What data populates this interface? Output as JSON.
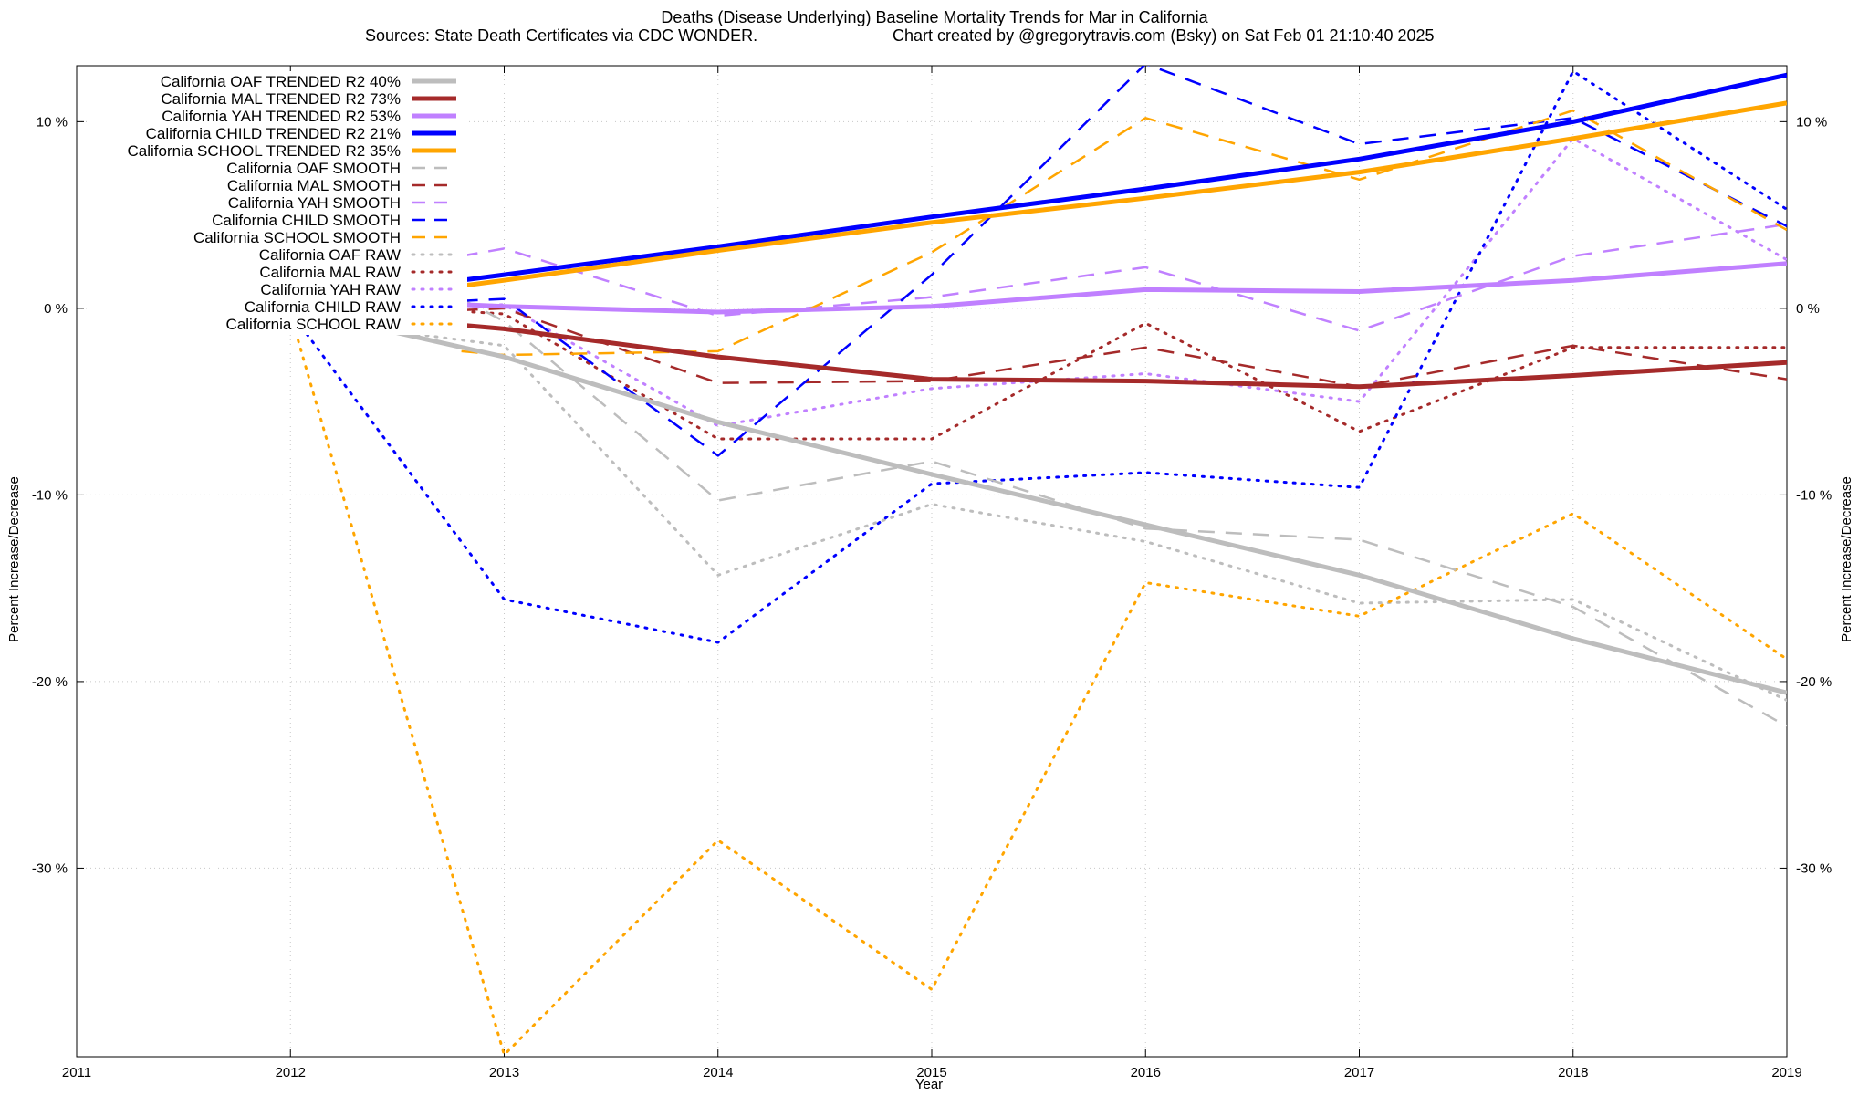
{
  "chart_data": {
    "type": "line",
    "title": "Deaths (Disease Underlying)  Baseline Mortality Trends for Mar in California",
    "subtitle_left": "Sources: State Death Certificates via CDC WONDER.",
    "subtitle_right": "Chart created by @gregorytravis.com (Bsky) on Sat Feb 01 21:10:40 2025",
    "xlabel": "Year",
    "ylabel_left": "Percent Increase/Decrease",
    "ylabel_right": "Percent Increase/Decrease",
    "xlim": [
      2011,
      2019
    ],
    "ylim": [
      -40.1,
      13
    ],
    "x_ticks": [
      2011,
      2012,
      2013,
      2014,
      2015,
      2016,
      2017,
      2018,
      2019
    ],
    "x_tick_labels": [
      "2011",
      "2012",
      "2013",
      "2014",
      "2015",
      "2016",
      "2017",
      "2018",
      "2019"
    ],
    "y_ticks": [
      10,
      0,
      -10,
      -20,
      -30
    ],
    "y_tick_labels": [
      "10 %",
      "0 %",
      "-10 %",
      "-20 %",
      "-30 %"
    ],
    "grid": true,
    "legend_position": "top-left",
    "series": [
      {
        "name": "California OAF TRENDED R2  40%",
        "style": "solid",
        "color": "#bdbdbd",
        "points": [
          [
            2012.3,
            -0.8
          ],
          [
            2013,
            -2.6
          ],
          [
            2014,
            -6.1
          ],
          [
            2015,
            -8.9
          ],
          [
            2016,
            -11.6
          ],
          [
            2017,
            -14.3
          ],
          [
            2018,
            -17.7
          ],
          [
            2019,
            -20.6
          ]
        ]
      },
      {
        "name": "California MAL TRENDED R2  73%",
        "style": "solid",
        "color": "#a52a2a",
        "points": [
          [
            2012.8,
            -0.9
          ],
          [
            2013,
            -1.1
          ],
          [
            2014,
            -2.6
          ],
          [
            2015,
            -3.8
          ],
          [
            2016,
            -3.9
          ],
          [
            2017,
            -4.2
          ],
          [
            2018,
            -3.6
          ],
          [
            2019,
            -2.9
          ]
        ]
      },
      {
        "name": "California YAH TRENDED R2  53%",
        "style": "solid",
        "color": "#c080ff",
        "points": [
          [
            2012.8,
            0.2
          ],
          [
            2013,
            0.1
          ],
          [
            2014,
            -0.2
          ],
          [
            2015,
            0.1
          ],
          [
            2016,
            1.0
          ],
          [
            2017,
            0.9
          ],
          [
            2018,
            1.5
          ],
          [
            2019,
            2.4
          ]
        ]
      },
      {
        "name": "California CHILD TRENDED R2  21%",
        "style": "solid",
        "color": "#0000ff",
        "points": [
          [
            2012.8,
            1.5
          ],
          [
            2013,
            1.8
          ],
          [
            2014,
            3.3
          ],
          [
            2015,
            4.9
          ],
          [
            2016,
            6.4
          ],
          [
            2017,
            8.0
          ],
          [
            2018,
            10.0
          ],
          [
            2019,
            12.5
          ]
        ]
      },
      {
        "name": "California SCHOOL TRENDED R2  35%",
        "style": "solid",
        "color": "#ffa500",
        "points": [
          [
            2012.8,
            1.2
          ],
          [
            2013,
            1.5
          ],
          [
            2014,
            3.1
          ],
          [
            2015,
            4.6
          ],
          [
            2016,
            5.9
          ],
          [
            2017,
            7.3
          ],
          [
            2018,
            9.1
          ],
          [
            2019,
            11.0
          ]
        ]
      },
      {
        "name": "California OAF SMOOTH",
        "style": "dashed",
        "color": "#bdbdbd",
        "points": [
          [
            2012.8,
            0.5
          ],
          [
            2013,
            -0.7
          ],
          [
            2014,
            -10.3
          ],
          [
            2015,
            -8.2
          ],
          [
            2016,
            -11.8
          ],
          [
            2017,
            -12.4
          ],
          [
            2018,
            -16.0
          ],
          [
            2019,
            -22.4
          ]
        ]
      },
      {
        "name": "California MAL SMOOTH",
        "style": "dashed",
        "color": "#a52a2a",
        "points": [
          [
            2012.8,
            -0.1
          ],
          [
            2013,
            0.0
          ],
          [
            2014,
            -4.0
          ],
          [
            2015,
            -3.9
          ],
          [
            2016,
            -2.1
          ],
          [
            2017,
            -4.2
          ],
          [
            2018,
            -2.0
          ],
          [
            2019,
            -3.8
          ]
        ]
      },
      {
        "name": "California YAH SMOOTH",
        "style": "dashed",
        "color": "#c080ff",
        "points": [
          [
            2012.8,
            2.8
          ],
          [
            2013,
            3.2
          ],
          [
            2014,
            -0.4
          ],
          [
            2015,
            0.6
          ],
          [
            2016,
            2.2
          ],
          [
            2017,
            -1.2
          ],
          [
            2018,
            2.8
          ],
          [
            2019,
            4.5
          ]
        ]
      },
      {
        "name": "California CHILD SMOOTH",
        "style": "dashed",
        "color": "#0000ff",
        "points": [
          [
            2012.8,
            0.4
          ],
          [
            2013,
            0.5
          ],
          [
            2014,
            -7.9
          ],
          [
            2015,
            1.8
          ],
          [
            2016,
            13.1
          ],
          [
            2017,
            8.8
          ],
          [
            2018,
            10.2
          ],
          [
            2019,
            4.4
          ]
        ]
      },
      {
        "name": "California SCHOOL SMOOTH",
        "style": "dashed",
        "color": "#ffa500",
        "points": [
          [
            2012.8,
            -2.3
          ],
          [
            2013,
            -2.5
          ],
          [
            2014,
            -2.3
          ],
          [
            2015,
            3.0
          ],
          [
            2016,
            10.2
          ],
          [
            2017,
            6.9
          ],
          [
            2018,
            10.6
          ],
          [
            2019,
            4.2
          ]
        ]
      },
      {
        "name": "California OAF RAW",
        "style": "dotted",
        "color": "#bdbdbd",
        "points": [
          [
            2012,
            -0.5
          ],
          [
            2013,
            -2.0
          ],
          [
            2014,
            -14.3
          ],
          [
            2015,
            -10.5
          ],
          [
            2016,
            -12.5
          ],
          [
            2017,
            -15.8
          ],
          [
            2018,
            -15.6
          ],
          [
            2019,
            -21.0
          ]
        ]
      },
      {
        "name": "California MAL RAW",
        "style": "dotted",
        "color": "#a52a2a",
        "points": [
          [
            2012,
            0.4
          ],
          [
            2013,
            -0.3
          ],
          [
            2014,
            -7.0
          ],
          [
            2015,
            -7.0
          ],
          [
            2016,
            -0.8
          ],
          [
            2017,
            -6.6
          ],
          [
            2018,
            -2.1
          ],
          [
            2019,
            -2.1
          ]
        ]
      },
      {
        "name": "California YAH RAW",
        "style": "dotted",
        "color": "#c080ff",
        "points": [
          [
            2012,
            -0.3
          ],
          [
            2013,
            0.2
          ],
          [
            2014,
            -6.3
          ],
          [
            2015,
            -4.3
          ],
          [
            2016,
            -3.5
          ],
          [
            2017,
            -5.0
          ],
          [
            2018,
            9.1
          ],
          [
            2019,
            2.6
          ]
        ]
      },
      {
        "name": "California CHILD RAW",
        "style": "dotted",
        "color": "#0000ff",
        "points": [
          [
            2012,
            -0.2
          ],
          [
            2013,
            -15.6
          ],
          [
            2014,
            -17.9
          ],
          [
            2015,
            -9.4
          ],
          [
            2016,
            -8.8
          ],
          [
            2017,
            -9.6
          ],
          [
            2018,
            12.7
          ],
          [
            2019,
            5.3
          ]
        ]
      },
      {
        "name": "California SCHOOL RAW",
        "style": "dotted",
        "color": "#ffa500",
        "points": [
          [
            2012,
            -0.3
          ],
          [
            2013,
            -40.0
          ],
          [
            2014,
            -28.5
          ],
          [
            2015,
            -36.5
          ],
          [
            2016,
            -14.7
          ],
          [
            2017,
            -16.5
          ],
          [
            2018,
            -11.0
          ],
          [
            2019,
            -18.8
          ]
        ]
      }
    ]
  }
}
